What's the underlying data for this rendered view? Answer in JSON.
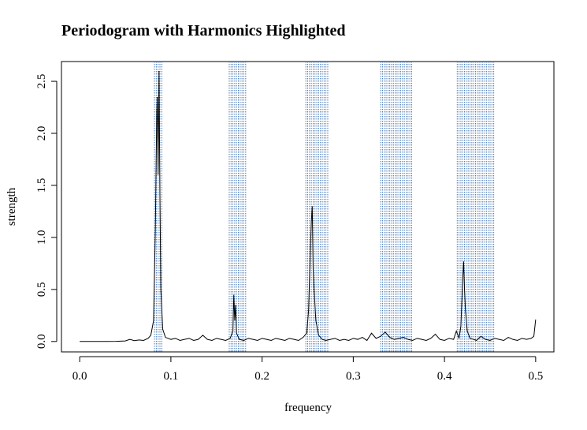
{
  "chart_data": {
    "type": "line",
    "title": "Periodogram with Harmonics Highlighted",
    "xlabel": "frequency",
    "ylabel": "strength",
    "color": "#000000",
    "highlight_color": "#4a7ab5",
    "highlight_lines": [
      0.082,
      0.084,
      0.086,
      0.088,
      0.09,
      0.164,
      0.166,
      0.168,
      0.17,
      0.172,
      0.174,
      0.176,
      0.178,
      0.18,
      0.182,
      0.248,
      0.25,
      0.252,
      0.254,
      0.256,
      0.258,
      0.26,
      0.262,
      0.264,
      0.266,
      0.268,
      0.27,
      0.272,
      0.33,
      0.332,
      0.334,
      0.336,
      0.338,
      0.34,
      0.342,
      0.344,
      0.346,
      0.348,
      0.35,
      0.352,
      0.354,
      0.356,
      0.358,
      0.36,
      0.362,
      0.364,
      0.414,
      0.416,
      0.418,
      0.42,
      0.422,
      0.424,
      0.426,
      0.428,
      0.43,
      0.432,
      0.434,
      0.436,
      0.438,
      0.44,
      0.442,
      0.444,
      0.446,
      0.448,
      0.45,
      0.452,
      0.454
    ],
    "x": [
      0,
      0.01,
      0.02,
      0.03,
      0.04,
      0.05,
      0.055,
      0.06,
      0.065,
      0.07,
      0.075,
      0.078,
      0.081,
      0.083,
      0.0845,
      0.085,
      0.086,
      0.087,
      0.088,
      0.089,
      0.091,
      0.094,
      0.1,
      0.105,
      0.11,
      0.115,
      0.12,
      0.125,
      0.13,
      0.135,
      0.14,
      0.145,
      0.15,
      0.155,
      0.16,
      0.165,
      0.168,
      0.169,
      0.17,
      0.171,
      0.172,
      0.175,
      0.18,
      0.185,
      0.19,
      0.195,
      0.2,
      0.205,
      0.21,
      0.215,
      0.22,
      0.225,
      0.23,
      0.235,
      0.24,
      0.245,
      0.249,
      0.251,
      0.253,
      0.254,
      0.255,
      0.256,
      0.257,
      0.259,
      0.262,
      0.266,
      0.27,
      0.275,
      0.28,
      0.285,
      0.29,
      0.295,
      0.3,
      0.305,
      0.31,
      0.315,
      0.32,
      0.325,
      0.33,
      0.335,
      0.34,
      0.345,
      0.35,
      0.355,
      0.36,
      0.365,
      0.37,
      0.375,
      0.38,
      0.385,
      0.39,
      0.395,
      0.4,
      0.405,
      0.41,
      0.413,
      0.416,
      0.418,
      0.42,
      0.421,
      0.422,
      0.423,
      0.425,
      0.428,
      0.432,
      0.435,
      0.44,
      0.445,
      0.45,
      0.455,
      0.46,
      0.465,
      0.47,
      0.475,
      0.48,
      0.485,
      0.49,
      0.495,
      0.498,
      0.5
    ],
    "values": [
      0,
      0,
      0,
      0,
      0.001,
      0.005,
      0.02,
      0.008,
      0.015,
      0.01,
      0.03,
      0.06,
      0.2,
      1.1,
      2.2,
      2.35,
      1.6,
      2.6,
      1.4,
      0.5,
      0.12,
      0.04,
      0.02,
      0.03,
      0.01,
      0.02,
      0.03,
      0.01,
      0.02,
      0.06,
      0.02,
      0.01,
      0.03,
      0.02,
      0.01,
      0.03,
      0.1,
      0.45,
      0.2,
      0.35,
      0.08,
      0.02,
      0.01,
      0.03,
      0.02,
      0.01,
      0.03,
      0.02,
      0.01,
      0.03,
      0.02,
      0.01,
      0.03,
      0.02,
      0.01,
      0.04,
      0.08,
      0.3,
      0.9,
      1.15,
      1.3,
      0.7,
      0.5,
      0.2,
      0.06,
      0.02,
      0.01,
      0.02,
      0.03,
      0.01,
      0.02,
      0.01,
      0.03,
      0.02,
      0.04,
      0.01,
      0.08,
      0.03,
      0.05,
      0.09,
      0.04,
      0.02,
      0.03,
      0.04,
      0.02,
      0.01,
      0.03,
      0.02,
      0.01,
      0.03,
      0.07,
      0.02,
      0.01,
      0.03,
      0.02,
      0.1,
      0.03,
      0.15,
      0.6,
      0.77,
      0.5,
      0.3,
      0.1,
      0.03,
      0.02,
      0.01,
      0.05,
      0.02,
      0.01,
      0.03,
      0.02,
      0.01,
      0.04,
      0.02,
      0.01,
      0.03,
      0.02,
      0.03,
      0.05,
      0.21
    ],
    "xlim": [
      -0.02,
      0.52
    ],
    "ylim": [
      -0.1,
      2.69
    ],
    "xticks": [
      {
        "value": 0,
        "label": "0.0"
      },
      0.1,
      0.2,
      0.3,
      0.4,
      0.5
    ],
    "yticks": [
      {
        "value": 0,
        "label": "0.0"
      },
      0.5,
      {
        "value": 1,
        "label": "1.0"
      },
      1.5,
      {
        "value": 2,
        "label": "2.0"
      },
      2.5
    ]
  }
}
